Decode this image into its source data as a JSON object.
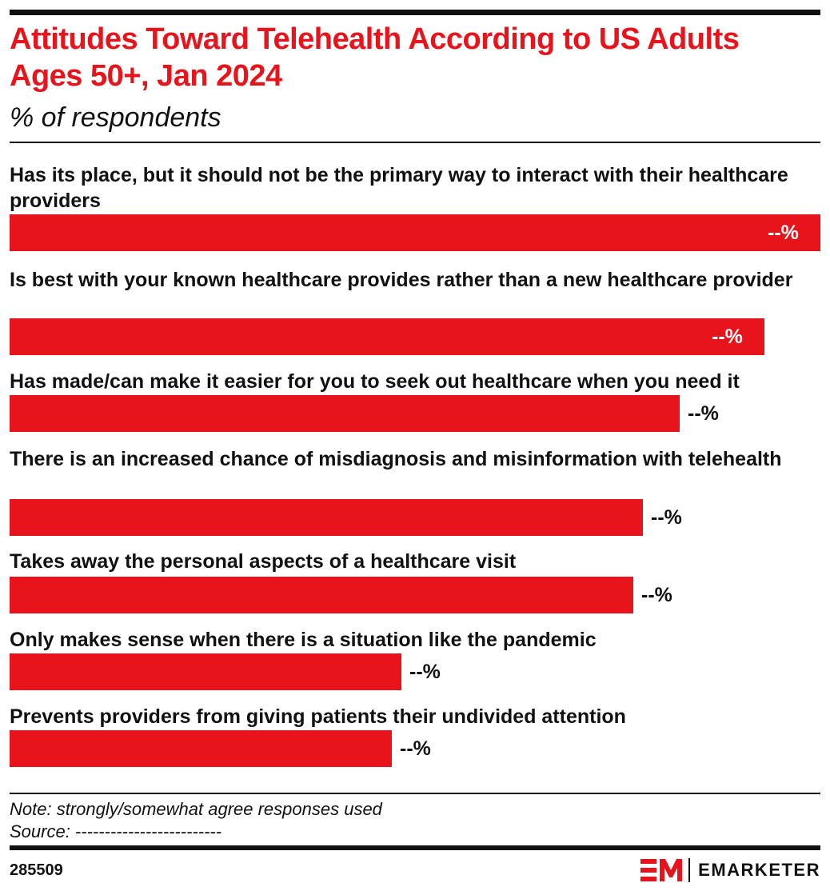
{
  "header": {
    "title": "Attitudes Toward Telehealth According to US Adults Ages 50+, Jan 2024",
    "subtitle": "% of respondents"
  },
  "chart_data": {
    "type": "bar",
    "orientation": "horizontal",
    "title": "Attitudes Toward Telehealth According to US Adults Ages 50+, Jan 2024",
    "subtitle": "% of respondents",
    "categories": [
      "Has its place, but it should not be the primary way to interact with their healthcare providers",
      "Is best with your known healthcare provides rather than a new healthcare provider",
      "Has made/can make it easier for you to seek out healthcare when you need it",
      "There is an increased chance of misdiagnosis and misinformation with telehealth",
      "Takes away the personal aspects of a healthcare visit",
      "Only makes sense when there is a situation like the pandemic",
      "Prevents providers from giving patients their undivided attention"
    ],
    "values": [
      100,
      93.1,
      82.6,
      78.1,
      76.9,
      48.3,
      47.1
    ],
    "value_scale": "relative to the longest bar = 100; exact values not printed",
    "value_labels": [
      "--%",
      "--%",
      "--%",
      "--%",
      "--%",
      "--%",
      "--%"
    ],
    "bar_color": "#e8141c",
    "grid": false,
    "legend": "none"
  },
  "footer": {
    "note": "Note: strongly/somewhat agree responses used",
    "source": "Source: -------------------------",
    "chart_id": "285509",
    "brand": "EMARKETER",
    "brand_color": "#e8141c"
  }
}
